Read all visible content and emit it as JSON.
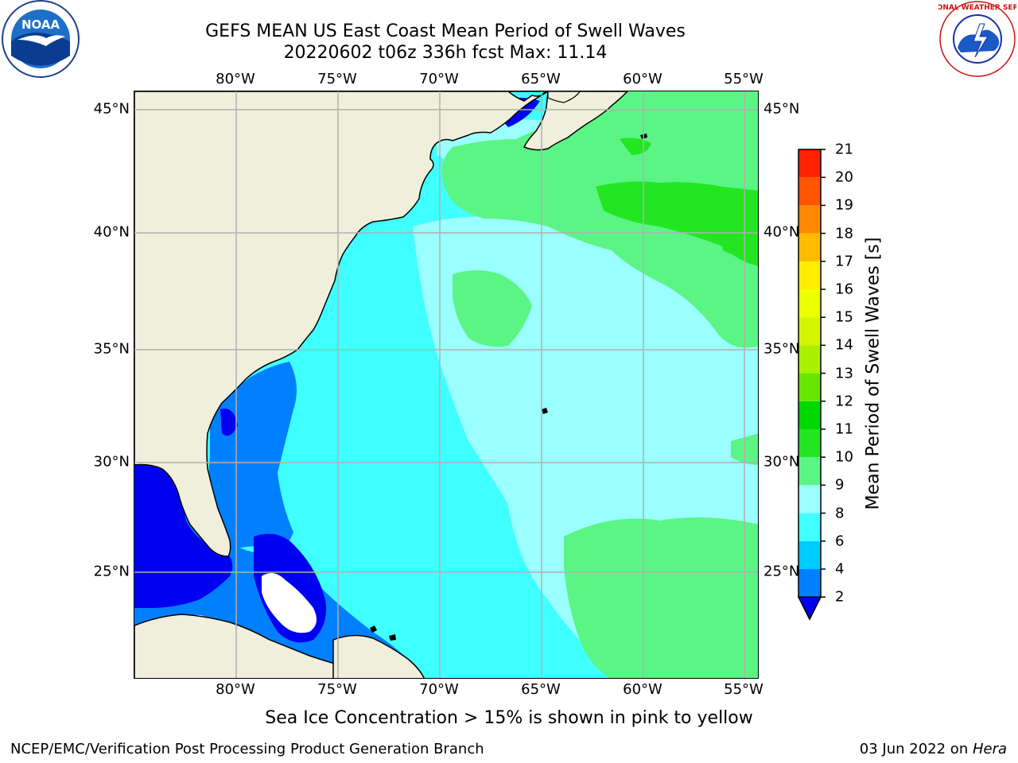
{
  "header": {
    "title_line1": "GEFS MEAN US East Coast Mean Period of Swell Waves",
    "title_line2": "20220602 t06z 336h fcst   Max: 11.14"
  },
  "map": {
    "lon_ticks_top": [
      "80°W",
      "75°W",
      "70°W",
      "65°W",
      "60°W",
      "55°W"
    ],
    "lon_ticks_bottom": [
      "80°W",
      "75°W",
      "70°W",
      "65°W",
      "60°W",
      "55°W"
    ],
    "lat_ticks_left": [
      "45°N",
      "40°N",
      "35°N",
      "30°N",
      "25°N"
    ],
    "lat_ticks_right": [
      "45°N",
      "40°N",
      "35°N",
      "30°N",
      "25°N"
    ],
    "lon_values": [
      -80,
      -75,
      -70,
      -65,
      -60,
      -55
    ],
    "lat_values": [
      45,
      40,
      35,
      30,
      25
    ],
    "extent": {
      "lon_min": -85,
      "lon_max": -54.3,
      "lat_min": 20.3,
      "lat_max": 45.8
    },
    "land_color": "#efefdc",
    "grid_color": "#b0b0b0"
  },
  "colorbar": {
    "title": "Mean Period of Swell Waves [s]",
    "labels": [
      "2",
      "4",
      "6",
      "8",
      "9",
      "10",
      "11",
      "12",
      "13",
      "14",
      "15",
      "16",
      "17",
      "18",
      "19",
      "20",
      "21"
    ],
    "colors": [
      "#0080ff",
      "#00ccff",
      "#40ffff",
      "#9bffff",
      "#5bf585",
      "#22e622",
      "#00d800",
      "#66e600",
      "#aaf000",
      "#d4f500",
      "#eeff00",
      "#ffee00",
      "#ffbb00",
      "#ff8800",
      "#ff5500",
      "#ff2200"
    ],
    "under_color": "#0000f0"
  },
  "note": "Sea Ice Concentration > 15% is shown in pink to yellow",
  "footer": {
    "left": "NCEP/EMC/Verification Post Processing Product Generation Branch",
    "date": "03 Jun 2022 on ",
    "host": "Hera"
  },
  "logos": {
    "left_icon": "noaa-logo-icon",
    "right_icon": "nws-logo-icon",
    "noaa_text": "NOAA",
    "nws_ring_text": "NATIONAL WEATHER SERVICE"
  }
}
